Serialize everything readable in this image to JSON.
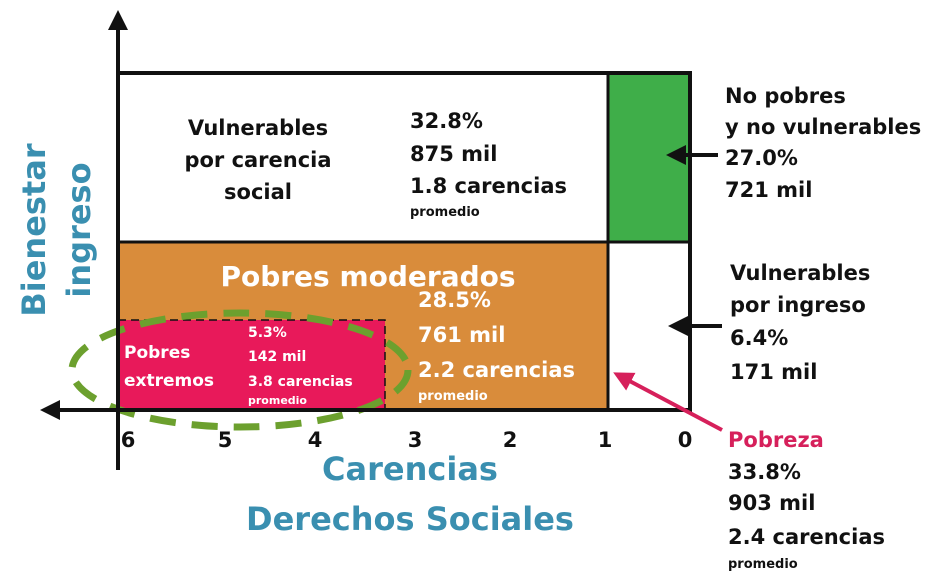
{
  "y_axis": {
    "label": [
      "Bienestar",
      "ingreso"
    ]
  },
  "x_axis": {
    "label": [
      "Carencias",
      "Derechos Sociales"
    ],
    "ticks": [
      6,
      5,
      4,
      3,
      2,
      1,
      0
    ]
  },
  "vulnerables_carencia": {
    "label": [
      "Vulnerables",
      "por carencia",
      "social"
    ],
    "stats": [
      "32.8%",
      "875 mil",
      "1.8 carencias"
    ],
    "note": "promedio"
  },
  "no_pobres": {
    "label": [
      "No pobres",
      "y no vulnerables"
    ],
    "stats": [
      "27.0%",
      "721 mil"
    ]
  },
  "pobres_moderados": {
    "title": "Pobres moderados",
    "stats": [
      "28.5%",
      "761 mil",
      "2.2 carencias"
    ],
    "note": "promedio"
  },
  "pobres_extremos": {
    "label": [
      "Pobres",
      "extremos"
    ],
    "stats": [
      "5.3%",
      "142 mil",
      "3.8 carencias"
    ],
    "note": "promedio"
  },
  "vulnerables_ingreso": {
    "label": [
      "Vulnerables",
      "por ingreso"
    ],
    "stats": [
      "6.4%",
      "171 mil"
    ]
  },
  "pobreza": {
    "title": "Pobreza",
    "stats": [
      "33.8%",
      "903 mil",
      "2.4 carencias"
    ],
    "note": "promedio"
  }
}
